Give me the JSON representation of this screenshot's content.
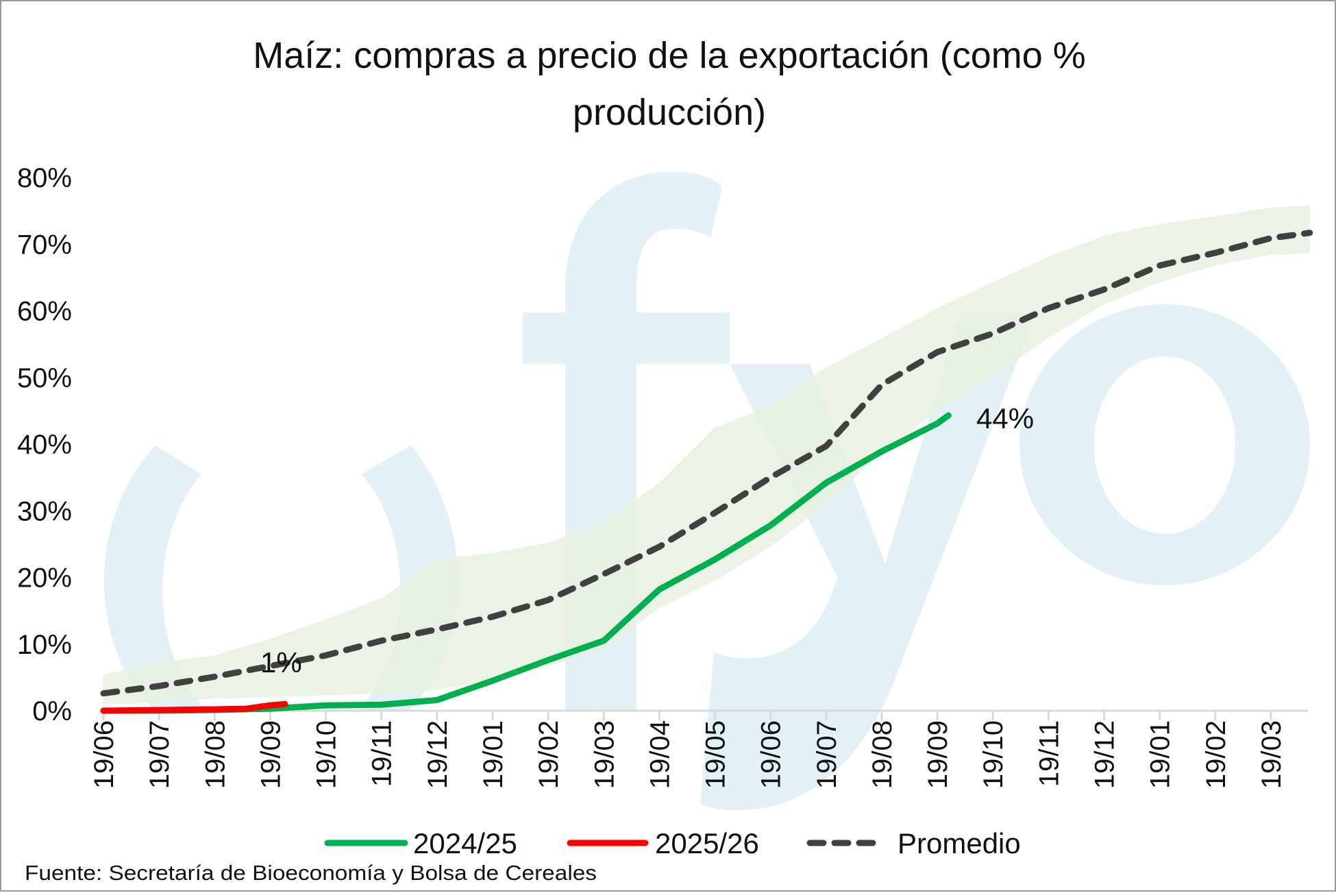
{
  "chart_data": {
    "type": "line",
    "title_lines": [
      "Maíz: compras a precio de la exportación (como %",
      "producción)"
    ],
    "xlabel": "",
    "ylabel": "",
    "x_tick_labels": [
      "19/06",
      "19/07",
      "19/08",
      "19/09",
      "19/10",
      "19/11",
      "19/12",
      "19/01",
      "19/02",
      "19/03",
      "19/04",
      "19/05",
      "19/06",
      "19/07",
      "19/08",
      "19/09",
      "19/10",
      "19/11",
      "19/12",
      "19/01",
      "19/02",
      "19/03"
    ],
    "y_tick_labels": [
      "0%",
      "10%",
      "20%",
      "30%",
      "40%",
      "50%",
      "60%",
      "70%",
      "80%"
    ],
    "ylim": [
      0,
      80
    ],
    "grid": false,
    "legend_position": "bottom",
    "band": {
      "color": "#e6f1e0",
      "upper": [
        5.4,
        7.3,
        8.3,
        10.8,
        13.7,
        16.9,
        22.7,
        23.7,
        25.2,
        28.4,
        34.2,
        42.5,
        45.7,
        51.5,
        55.9,
        60.4,
        64.3,
        68.1,
        71.3,
        73.0,
        74.2,
        75.5,
        75.8
      ],
      "lower": [
        0.9,
        1.3,
        1.8,
        2.0,
        2.3,
        2.6,
        3.1,
        4.7,
        6.7,
        9.2,
        15.4,
        19.5,
        24.6,
        31.0,
        38.7,
        45.0,
        50.2,
        55.9,
        61.0,
        64.3,
        66.8,
        68.4,
        68.6
      ],
      "x": [
        "19/06",
        "19/07",
        "19/08",
        "19/09",
        "19/10",
        "19/11",
        "19/12",
        "19/01",
        "19/02",
        "19/03",
        "19/04",
        "19/05",
        "19/06",
        "19/07",
        "19/08",
        "19/09",
        "19/10",
        "19/11",
        "19/12",
        "19/01",
        "19/02",
        "19/03",
        "10/04"
      ]
    },
    "series": [
      {
        "name": "2024/25",
        "color": "#00b050",
        "style": "solid",
        "x": [
          "19/06",
          "19/07",
          "19/08",
          "19/09",
          "19/10",
          "19/11",
          "19/12",
          "19/01",
          "19/02",
          "19/03",
          "19/04",
          "19/05",
          "19/06",
          "19/07",
          "19/08",
          "19/09",
          "25/09"
        ],
        "values": [
          0,
          0,
          0.1,
          0.3,
          0.8,
          0.9,
          1.6,
          4.5,
          7.6,
          10.5,
          18.2,
          22.7,
          27.8,
          34.2,
          38.9,
          43.1,
          44.3
        ],
        "end_label": "44%"
      },
      {
        "name": "2025/26",
        "color": "#ff0000",
        "style": "solid",
        "x": [
          "19/06",
          "19/07",
          "19/08",
          "06/09",
          "19/09",
          "27/09"
        ],
        "values": [
          0,
          0.1,
          0.2,
          0.3,
          0.8,
          1.0
        ],
        "end_label": "1%"
      },
      {
        "name": "Promedio",
        "color": "#404040",
        "style": "dashed",
        "x": [
          "19/06",
          "19/07",
          "19/08",
          "19/09",
          "19/10",
          "19/11",
          "19/12",
          "19/01",
          "19/02",
          "19/03",
          "19/04",
          "19/05",
          "19/06",
          "19/07",
          "19/08",
          "19/09",
          "19/10",
          "19/11",
          "19/12",
          "19/01",
          "19/02",
          "19/03",
          "10/04"
        ],
        "values": [
          2.6,
          3.7,
          5.1,
          6.7,
          8.3,
          10.5,
          12.2,
          14.1,
          16.6,
          20.5,
          24.6,
          29.7,
          35.0,
          39.7,
          48.9,
          53.8,
          56.6,
          60.4,
          63.2,
          66.8,
          68.7,
          70.9,
          71.7
        ]
      }
    ],
    "source": "Fuente: Secretaría de Bioeconomía y Bolsa de Cereales",
    "watermark": "fyo"
  }
}
